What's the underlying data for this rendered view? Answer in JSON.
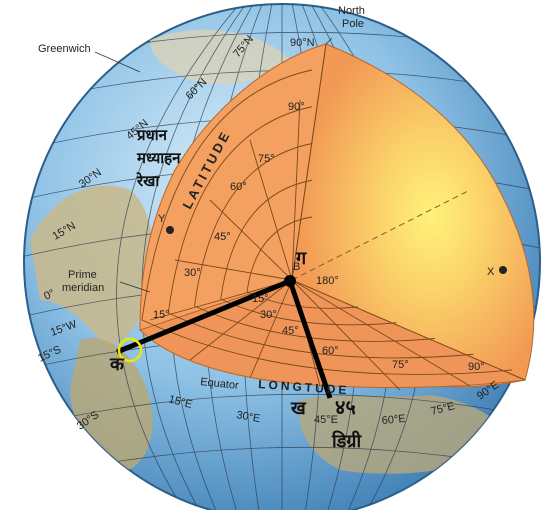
{
  "labels": {
    "greenwich": "Greenwich",
    "north_pole_1": "North",
    "north_pole_2": "Pole",
    "pole_deg": "90°N",
    "prime_meridian_1": "Prime",
    "prime_meridian_2": "meridian",
    "equator": "Equator",
    "latitude": "LATITUDE",
    "longitude": "LONGTUDE",
    "point_b": "B",
    "point_x": "X",
    "point_y": "Y",
    "center_deg": "180°"
  },
  "latitude_ticks": [
    {
      "text": "75°N"
    },
    {
      "text": "60°N"
    },
    {
      "text": "45°N"
    },
    {
      "text": "30°N"
    },
    {
      "text": "15°N"
    },
    {
      "text": "0°"
    },
    {
      "text": "15°W"
    },
    {
      "text": "15°S"
    },
    {
      "text": "30°S"
    }
  ],
  "inner_lat_degs": [
    "90°",
    "75°",
    "60°",
    "45°",
    "30°",
    "15°"
  ],
  "inner_lon_degs": [
    "15°",
    "30°",
    "45°",
    "60°",
    "75°",
    "90°"
  ],
  "lon_ticks": [
    "15°E",
    "30°E",
    "45°E",
    "60°E",
    "75°E",
    "90°E"
  ],
  "hindi": {
    "prime_meridian": [
      "प्रधान",
      "मध्याहन",
      "रेखा"
    ],
    "ga": "ग",
    "ka": "क",
    "kha": "ख",
    "degree_value": "४५",
    "degree_word": "डिग्री"
  },
  "colors": {
    "ocean": "#7fb7de",
    "wedge": "#f5a25a",
    "wedge_core": "#fff07a",
    "highlight": "#f2e600"
  }
}
